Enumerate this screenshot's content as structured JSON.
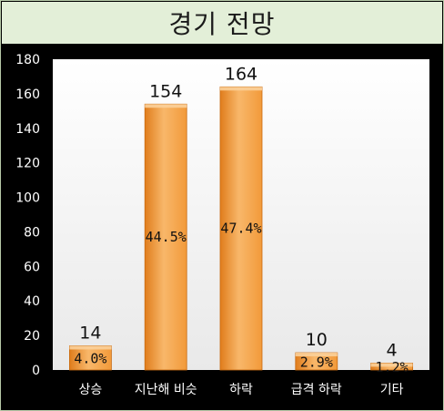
{
  "chart_data": {
    "type": "bar",
    "title": "경기 전망",
    "categories": [
      "상승",
      "지난해 비슷",
      "하락",
      "급격 하락",
      "기타"
    ],
    "values": [
      14,
      154,
      164,
      10,
      4
    ],
    "percent_labels": [
      "4.0%",
      "44.5%",
      "47.4%",
      "2.9%",
      "1.2%"
    ],
    "y_ticks": [
      "0",
      "20",
      "40",
      "60",
      "80",
      "100",
      "120",
      "140",
      "160",
      "180"
    ],
    "ylim": [
      0,
      180
    ],
    "xlabel": "",
    "ylabel": "",
    "grid": false,
    "legend": "none",
    "colors": {
      "bar": "#f29a3a",
      "bar_dark": "#e07d1c",
      "bar_light": "#f8b76a",
      "plot_bg": "#f4f4f4",
      "page_bg": "#000000",
      "title_bg": "#e3efd8",
      "axis_text": "#ffffff"
    }
  }
}
